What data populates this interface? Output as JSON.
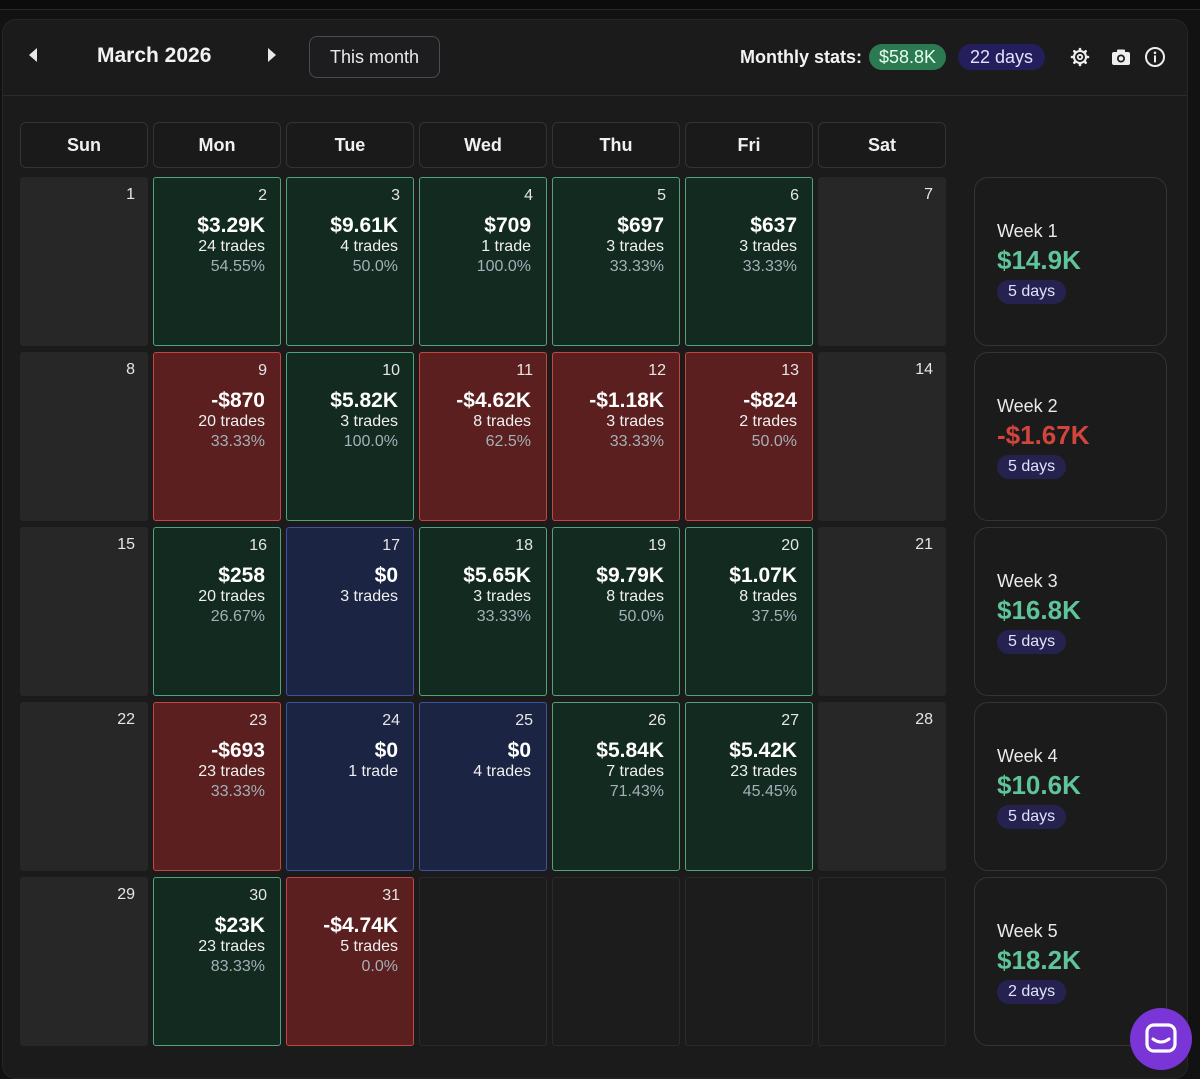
{
  "header": {
    "month": "March 2026",
    "this_month_label": "This month",
    "stats_label": "Monthly stats:",
    "monthly_total": "$58.8K",
    "monthly_days": "22 days",
    "icons": [
      "settings-icon",
      "camera-icon",
      "info-icon"
    ]
  },
  "weekdays": [
    "Sun",
    "Mon",
    "Tue",
    "Wed",
    "Thu",
    "Fri",
    "Sat"
  ],
  "weeks": [
    {
      "label": "Week 1",
      "total": "$14.9K",
      "days": "5 days",
      "status": "pos",
      "cells": [
        {
          "day": "1",
          "type": "empty"
        },
        {
          "day": "2",
          "type": "pos",
          "pnl": "$3.29K",
          "trades": "24 trades",
          "rate": "54.55%"
        },
        {
          "day": "3",
          "type": "pos",
          "pnl": "$9.61K",
          "trades": "4 trades",
          "rate": "50.0%"
        },
        {
          "day": "4",
          "type": "pos",
          "pnl": "$709",
          "trades": "1 trade",
          "rate": "100.0%"
        },
        {
          "day": "5",
          "type": "pos",
          "pnl": "$697",
          "trades": "3 trades",
          "rate": "33.33%"
        },
        {
          "day": "6",
          "type": "pos",
          "pnl": "$637",
          "trades": "3 trades",
          "rate": "33.33%"
        },
        {
          "day": "7",
          "type": "empty"
        }
      ]
    },
    {
      "label": "Week 2",
      "total": "-$1.67K",
      "days": "5 days",
      "status": "neg",
      "cells": [
        {
          "day": "8",
          "type": "empty"
        },
        {
          "day": "9",
          "type": "neg",
          "pnl": "-$870",
          "trades": "20 trades",
          "rate": "33.33%"
        },
        {
          "day": "10",
          "type": "pos",
          "pnl": "$5.82K",
          "trades": "3 trades",
          "rate": "100.0%"
        },
        {
          "day": "11",
          "type": "neg",
          "pnl": "-$4.62K",
          "trades": "8 trades",
          "rate": "62.5%"
        },
        {
          "day": "12",
          "type": "neg",
          "pnl": "-$1.18K",
          "trades": "3 trades",
          "rate": "33.33%"
        },
        {
          "day": "13",
          "type": "neg",
          "pnl": "-$824",
          "trades": "2 trades",
          "rate": "50.0%"
        },
        {
          "day": "14",
          "type": "empty"
        }
      ]
    },
    {
      "label": "Week 3",
      "total": "$16.8K",
      "days": "5 days",
      "status": "pos",
      "cells": [
        {
          "day": "15",
          "type": "empty"
        },
        {
          "day": "16",
          "type": "pos",
          "pnl": "$258",
          "trades": "20 trades",
          "rate": "26.67%"
        },
        {
          "day": "17",
          "type": "zero",
          "pnl": "$0",
          "trades": "3 trades",
          "rate": ""
        },
        {
          "day": "18",
          "type": "pos",
          "pnl": "$5.65K",
          "trades": "3 trades",
          "rate": "33.33%"
        },
        {
          "day": "19",
          "type": "pos",
          "pnl": "$9.79K",
          "trades": "8 trades",
          "rate": "50.0%"
        },
        {
          "day": "20",
          "type": "pos",
          "pnl": "$1.07K",
          "trades": "8 trades",
          "rate": "37.5%"
        },
        {
          "day": "21",
          "type": "empty"
        }
      ]
    },
    {
      "label": "Week 4",
      "total": "$10.6K",
      "days": "5 days",
      "status": "pos",
      "cells": [
        {
          "day": "22",
          "type": "empty"
        },
        {
          "day": "23",
          "type": "neg",
          "pnl": "-$693",
          "trades": "23 trades",
          "rate": "33.33%"
        },
        {
          "day": "24",
          "type": "zero",
          "pnl": "$0",
          "trades": "1 trade",
          "rate": ""
        },
        {
          "day": "25",
          "type": "zero",
          "pnl": "$0",
          "trades": "4 trades",
          "rate": ""
        },
        {
          "day": "26",
          "type": "pos",
          "pnl": "$5.84K",
          "trades": "7 trades",
          "rate": "71.43%"
        },
        {
          "day": "27",
          "type": "pos",
          "pnl": "$5.42K",
          "trades": "23 trades",
          "rate": "45.45%"
        },
        {
          "day": "28",
          "type": "empty"
        }
      ]
    },
    {
      "label": "Week 5",
      "total": "$18.2K",
      "days": "2 days",
      "status": "pos",
      "cells": [
        {
          "day": "29",
          "type": "empty"
        },
        {
          "day": "30",
          "type": "pos",
          "pnl": "$23K",
          "trades": "23 trades",
          "rate": "83.33%"
        },
        {
          "day": "31",
          "type": "neg",
          "pnl": "-$4.74K",
          "trades": "5 trades",
          "rate": "0.0%"
        },
        {
          "day": "",
          "type": "blank"
        },
        {
          "day": "",
          "type": "blank"
        },
        {
          "day": "",
          "type": "blank"
        },
        {
          "day": "",
          "type": "blank"
        }
      ]
    }
  ],
  "colors": {
    "positive": "#5fc49a",
    "negative": "#d2453d",
    "accent_purple": "#7a35d6"
  }
}
